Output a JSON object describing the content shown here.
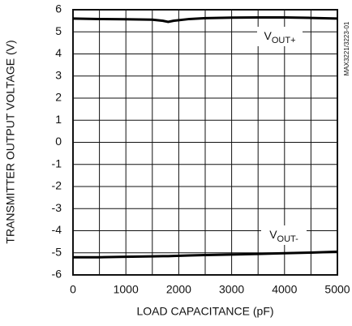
{
  "chart_data": {
    "type": "line",
    "x_label": "LOAD CAPACITANCE (pF)",
    "y_label": "TRANSMITTER OUTPUT VOLTAGE (V)",
    "side_note": "MAX3221/3223-01",
    "xlim": [
      0,
      5000
    ],
    "xticks": [
      0,
      1000,
      2000,
      3000,
      4000,
      5000
    ],
    "xgrid": [
      500,
      1500,
      2500,
      3500,
      4500
    ],
    "ylim": [
      -6,
      6
    ],
    "yticks": [
      -6,
      -5,
      -4,
      -3,
      -2,
      -1,
      0,
      1,
      2,
      3,
      4,
      5,
      6
    ],
    "grid": true,
    "x": [
      0,
      500,
      1000,
      1500,
      1700,
      1800,
      1900,
      2200,
      2500,
      3000,
      3500,
      4000,
      4500,
      5000
    ],
    "series": [
      {
        "name": "VOUT+",
        "color": "#000000",
        "values": [
          5.6,
          5.58,
          5.57,
          5.55,
          5.5,
          5.45,
          5.5,
          5.58,
          5.62,
          5.64,
          5.65,
          5.65,
          5.63,
          5.6
        ]
      },
      {
        "name": "VOUT-",
        "color": "#000000",
        "values": [
          -5.2,
          -5.2,
          -5.18,
          -5.16,
          -5.15,
          -5.15,
          -5.14,
          -5.12,
          -5.1,
          -5.08,
          -5.05,
          -5.02,
          -4.99,
          -4.95
        ]
      }
    ]
  }
}
